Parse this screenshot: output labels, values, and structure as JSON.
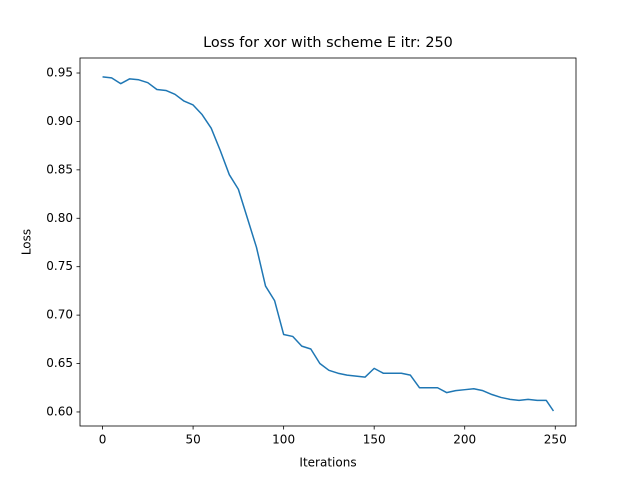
{
  "chart_data": {
    "type": "line",
    "title": "Loss for xor with scheme E itr: 250",
    "xlabel": "Iterations",
    "ylabel": "Loss",
    "x": [
      0,
      5,
      10,
      15,
      20,
      25,
      30,
      35,
      40,
      45,
      50,
      55,
      60,
      65,
      70,
      75,
      80,
      85,
      90,
      95,
      100,
      105,
      110,
      115,
      120,
      125,
      130,
      135,
      140,
      145,
      150,
      155,
      160,
      165,
      170,
      175,
      180,
      185,
      190,
      195,
      200,
      205,
      210,
      215,
      220,
      225,
      230,
      235,
      240,
      245,
      249
    ],
    "series": [
      {
        "name": "Loss",
        "color": "#1f77b4",
        "values": [
          0.946,
          0.945,
          0.939,
          0.944,
          0.943,
          0.94,
          0.933,
          0.932,
          0.928,
          0.921,
          0.917,
          0.907,
          0.893,
          0.87,
          0.845,
          0.83,
          0.8,
          0.77,
          0.73,
          0.715,
          0.68,
          0.678,
          0.668,
          0.665,
          0.65,
          0.643,
          0.64,
          0.638,
          0.637,
          0.636,
          0.645,
          0.64,
          0.64,
          0.64,
          0.638,
          0.625,
          0.625,
          0.625,
          0.62,
          0.622,
          0.623,
          0.624,
          0.622,
          0.618,
          0.615,
          0.613,
          0.612,
          0.613,
          0.612,
          0.612,
          0.601
        ]
      }
    ],
    "xlim": [
      -12.45,
      261.45
    ],
    "ylim": [
      0.5855,
      0.9655
    ],
    "xticks": [
      0,
      50,
      100,
      150,
      200,
      250
    ],
    "yticks": [
      {
        "value": 0.6,
        "label": "0.60"
      },
      0.65,
      {
        "value": 0.7,
        "label": "0.70"
      },
      0.75,
      {
        "value": 0.8,
        "label": "0.80"
      },
      0.85,
      {
        "value": 0.9,
        "label": "0.90"
      },
      0.95
    ],
    "grid": false
  }
}
